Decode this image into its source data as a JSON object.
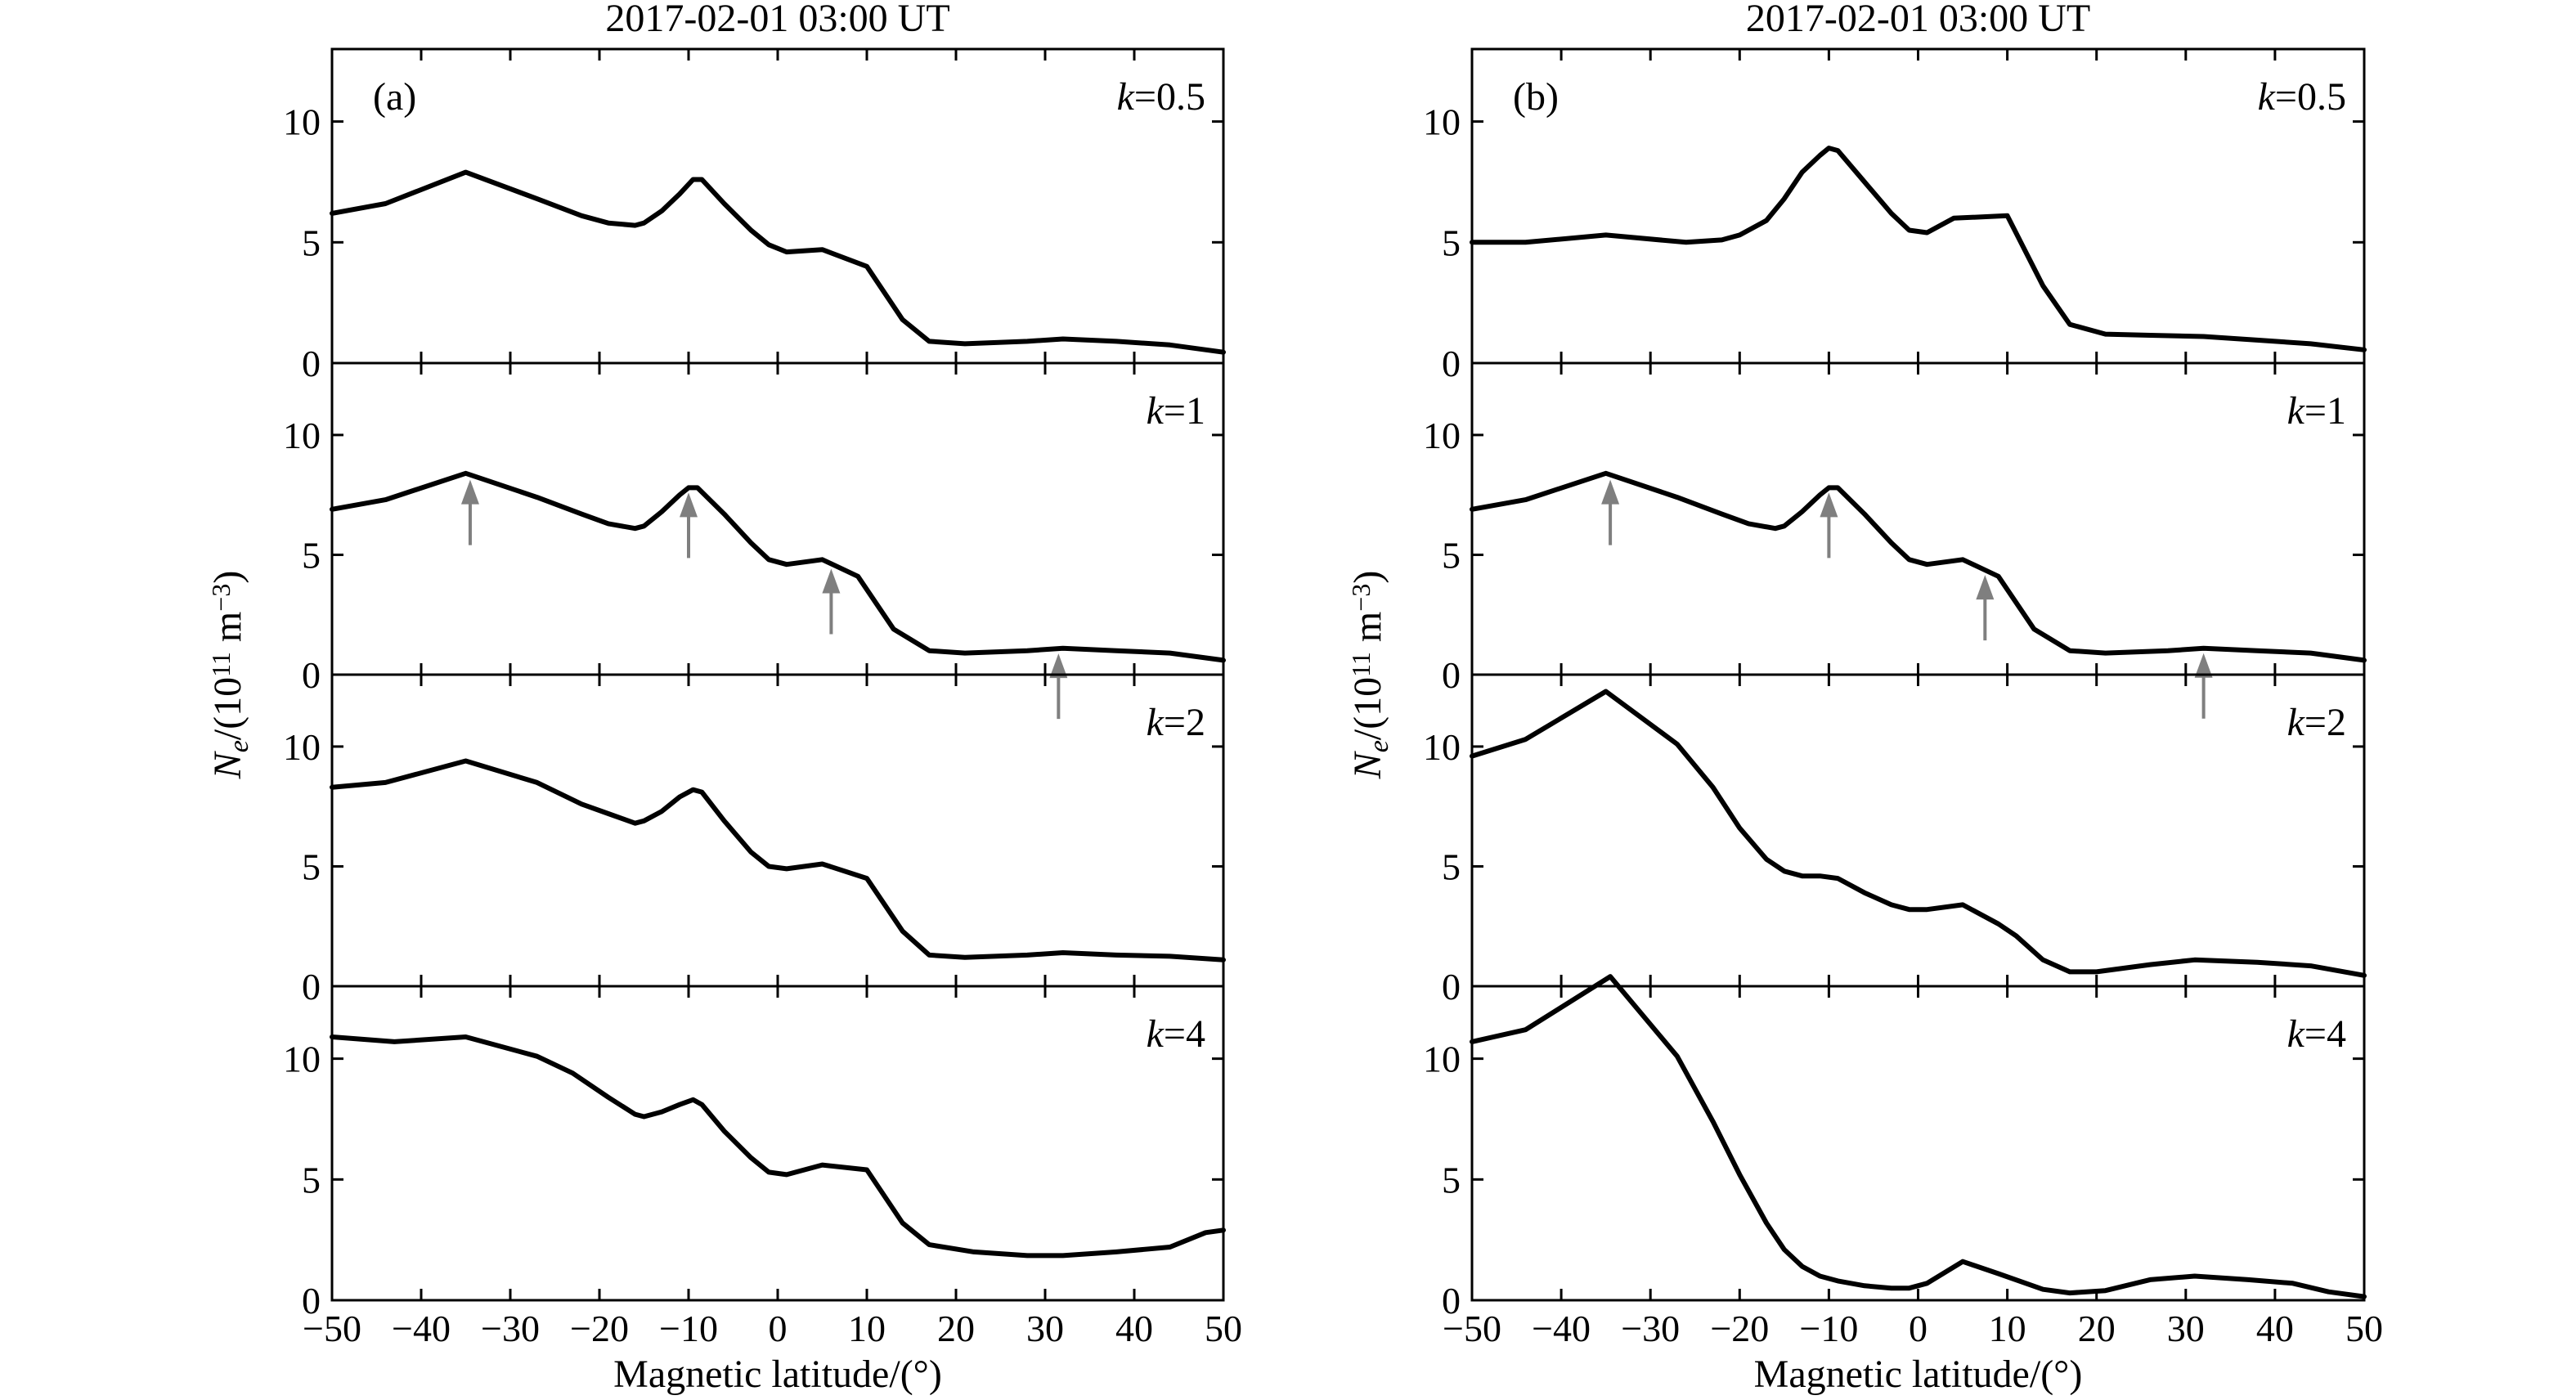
{
  "colors": {
    "line": "#000000",
    "arrow": "#7f7f7f",
    "background": "#ffffff"
  },
  "chart_data": [
    {
      "type": "line",
      "title": "2017-02-01 03:00 UT",
      "panel_label": "(a)",
      "xlabel": "Magnetic latitude/(°)",
      "ylabel": {
        "main": "N",
        "sub": "e",
        "open": "/(10",
        "exp": "11",
        "unit": " m",
        "unit_exp": "−3",
        "close": ")"
      },
      "xlim": [
        -50,
        50
      ],
      "ylim": [
        0,
        13
      ],
      "xticks": [
        -50,
        -40,
        -30,
        -20,
        -10,
        0,
        10,
        20,
        30,
        40,
        50
      ],
      "xtick_labels": [
        "−50",
        "−40",
        "−30",
        "−20",
        "−10",
        "0",
        "10",
        "20",
        "30",
        "40",
        "50"
      ],
      "yticks": [
        0,
        5,
        10
      ],
      "ytick_labels": [
        "0",
        "5",
        "10"
      ],
      "subplots": [
        {
          "k_prefix": "k",
          "k_suffix": "=0.5",
          "x": [
            -50,
            -44,
            -35,
            -27,
            -22,
            -19,
            -16,
            -15,
            -13,
            -11,
            -9.5,
            -8.5,
            -6,
            -3,
            -1,
            1,
            5,
            10,
            14,
            17,
            21,
            28,
            32,
            38,
            44,
            50
          ],
          "y": [
            6.2,
            6.6,
            7.9,
            6.8,
            6.1,
            5.8,
            5.7,
            5.8,
            6.3,
            7.0,
            7.6,
            7.6,
            6.6,
            5.5,
            4.9,
            4.6,
            4.7,
            4.0,
            1.8,
            0.9,
            0.8,
            0.9,
            1.0,
            0.9,
            0.75,
            0.45
          ],
          "arrows_x": []
        },
        {
          "k_prefix": "k",
          "k_suffix": "=1",
          "x": [
            -50,
            -44,
            -35,
            -27,
            -22,
            -19,
            -16,
            -15,
            -13,
            -11,
            -10,
            -9,
            -6,
            -3,
            -1,
            1,
            5,
            9,
            13,
            17,
            21,
            28,
            32,
            38,
            44,
            50
          ],
          "y": [
            6.9,
            7.3,
            8.4,
            7.4,
            6.7,
            6.3,
            6.1,
            6.2,
            6.8,
            7.5,
            7.8,
            7.8,
            6.7,
            5.5,
            4.8,
            4.6,
            4.8,
            4.1,
            1.9,
            1.0,
            0.9,
            1.0,
            1.1,
            1.0,
            0.9,
            0.6
          ],
          "arrows_x": [
            -34.5,
            -10,
            6,
            31.5
          ]
        },
        {
          "k_prefix": "k",
          "k_suffix": "=2",
          "x": [
            -50,
            -44,
            -35,
            -27,
            -22,
            -19,
            -16,
            -15,
            -13,
            -11,
            -9.5,
            -8.5,
            -6,
            -3,
            -1,
            1,
            5,
            10,
            14,
            17,
            21,
            28,
            32,
            38,
            44,
            50
          ],
          "y": [
            8.3,
            8.5,
            9.4,
            8.5,
            7.6,
            7.2,
            6.8,
            6.9,
            7.3,
            7.9,
            8.2,
            8.1,
            6.9,
            5.6,
            5.0,
            4.9,
            5.1,
            4.5,
            2.3,
            1.3,
            1.2,
            1.3,
            1.4,
            1.3,
            1.25,
            1.1
          ],
          "arrows_x": []
        },
        {
          "k_prefix": "k",
          "k_suffix": "=4",
          "x": [
            -50,
            -43,
            -35,
            -27,
            -23,
            -19,
            -16,
            -15,
            -13,
            -11,
            -9.5,
            -8.5,
            -6,
            -3,
            -1,
            1,
            5,
            10,
            14,
            17,
            22,
            28,
            32,
            38,
            44,
            48,
            50
          ],
          "y": [
            10.9,
            10.7,
            10.9,
            10.1,
            9.4,
            8.4,
            7.7,
            7.6,
            7.8,
            8.1,
            8.3,
            8.1,
            7.0,
            5.9,
            5.3,
            5.2,
            5.6,
            5.4,
            3.2,
            2.3,
            2.0,
            1.85,
            1.85,
            2.0,
            2.2,
            2.8,
            2.9
          ],
          "arrows_x": []
        }
      ]
    },
    {
      "type": "line",
      "title": "2017-02-01 03:00 UT",
      "panel_label": "(b)",
      "xlabel": "Magnetic latitude/(°)",
      "ylabel": {
        "main": "N",
        "sub": "e",
        "open": "/(10",
        "exp": "11",
        "unit": " m",
        "unit_exp": "−3",
        "close": ")"
      },
      "xlim": [
        -50,
        50
      ],
      "ylim": [
        0,
        13
      ],
      "xticks": [
        -50,
        -40,
        -30,
        -20,
        -10,
        0,
        10,
        20,
        30,
        40,
        50
      ],
      "xtick_labels": [
        "−50",
        "−40",
        "−30",
        "−20",
        "−10",
        "0",
        "10",
        "20",
        "30",
        "40",
        "50"
      ],
      "yticks": [
        0,
        5,
        10
      ],
      "ytick_labels": [
        "0",
        "5",
        "10"
      ],
      "subplots": [
        {
          "k_prefix": "k",
          "k_suffix": "=0.5",
          "x": [
            -50,
            -44,
            -35,
            -26,
            -22,
            -20,
            -17,
            -15,
            -13,
            -11,
            -10,
            -9,
            -6,
            -3,
            -1,
            1,
            4,
            10,
            14,
            17,
            21,
            26,
            32,
            38,
            44,
            50
          ],
          "y": [
            5.0,
            5.0,
            5.3,
            5.0,
            5.1,
            5.3,
            5.9,
            6.8,
            7.9,
            8.6,
            8.9,
            8.8,
            7.5,
            6.2,
            5.5,
            5.4,
            6.0,
            6.1,
            3.2,
            1.6,
            1.2,
            1.15,
            1.1,
            0.95,
            0.8,
            0.55
          ],
          "arrows_x": []
        },
        {
          "k_prefix": "k",
          "k_suffix": "=1",
          "x": [
            -50,
            -44,
            -35,
            -27,
            -22,
            -19,
            -16,
            -15,
            -13,
            -11,
            -10,
            -9,
            -6,
            -3,
            -1,
            1,
            5,
            9,
            13,
            17,
            21,
            28,
            32,
            38,
            44,
            50
          ],
          "y": [
            6.9,
            7.3,
            8.4,
            7.4,
            6.7,
            6.3,
            6.1,
            6.2,
            6.8,
            7.5,
            7.8,
            7.8,
            6.7,
            5.5,
            4.8,
            4.6,
            4.8,
            4.1,
            1.9,
            1.0,
            0.9,
            1.0,
            1.1,
            1.0,
            0.9,
            0.6
          ],
          "arrows_x": [
            -34.5,
            -10,
            7.5,
            32
          ]
        },
        {
          "k_prefix": "k",
          "k_suffix": "=2",
          "x": [
            -50,
            -44,
            -35,
            -27,
            -23,
            -20,
            -17,
            -15,
            -13,
            -11,
            -9,
            -6,
            -3,
            -1,
            1,
            5,
            9,
            11,
            14,
            17,
            20,
            26,
            31,
            38,
            44,
            50
          ],
          "y": [
            9.6,
            10.3,
            12.3,
            10.1,
            8.3,
            6.6,
            5.3,
            4.8,
            4.6,
            4.6,
            4.5,
            3.9,
            3.4,
            3.2,
            3.2,
            3.4,
            2.6,
            2.1,
            1.1,
            0.6,
            0.6,
            0.9,
            1.1,
            1.0,
            0.85,
            0.45
          ],
          "arrows_x": []
        },
        {
          "k_prefix": "k",
          "k_suffix": "=4",
          "x": [
            -50,
            -44,
            -34.5,
            -27,
            -23,
            -20,
            -17,
            -15,
            -13,
            -11,
            -9,
            -6,
            -3,
            -1,
            1,
            5,
            9,
            14,
            17,
            21,
            26,
            31,
            37,
            42,
            46,
            50
          ],
          "y": [
            10.7,
            11.2,
            13.4,
            10.1,
            7.4,
            5.2,
            3.2,
            2.1,
            1.4,
            1.0,
            0.8,
            0.6,
            0.5,
            0.5,
            0.7,
            1.6,
            1.1,
            0.45,
            0.3,
            0.4,
            0.85,
            1.0,
            0.85,
            0.7,
            0.35,
            0.15
          ],
          "arrows_x": []
        }
      ]
    }
  ]
}
